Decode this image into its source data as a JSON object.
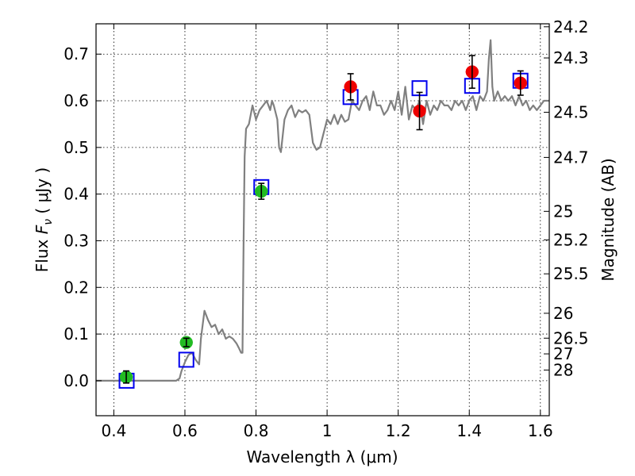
{
  "chart_data": {
    "type": "scatter",
    "xlabel": "Wavelength  λ (μm)",
    "ylabel": "Flux  F_ν  ( μJy )",
    "ylabel_parts": {
      "a": "Flux  ",
      "b": "F",
      "c": "ν",
      "d": "  ( μJy )"
    },
    "ylabel_right": "Magnitude (AB)",
    "xlim": [
      0.35,
      1.625
    ],
    "ylim": [
      -0.075,
      0.765
    ],
    "grid": true,
    "legend": "none",
    "x_ticks": [
      {
        "value": 0.4,
        "label": "0.4"
      },
      {
        "value": 0.6,
        "label": "0.6"
      },
      {
        "value": 0.8,
        "label": "0.8"
      },
      {
        "value": 1.0,
        "label": "1"
      },
      {
        "value": 1.2,
        "label": "1.2"
      },
      {
        "value": 1.4,
        "label": "1.4"
      },
      {
        "value": 1.6,
        "label": "1.6"
      }
    ],
    "y_ticks": [
      {
        "value": 0.0,
        "label": "0.0"
      },
      {
        "value": 0.1,
        "label": "0.1"
      },
      {
        "value": 0.2,
        "label": "0.2"
      },
      {
        "value": 0.3,
        "label": "0.3"
      },
      {
        "value": 0.4,
        "label": "0.4"
      },
      {
        "value": 0.5,
        "label": "0.5"
      },
      {
        "value": 0.6,
        "label": "0.6"
      },
      {
        "value": 0.7,
        "label": "0.7"
      }
    ],
    "right_ticks": [
      {
        "mag": 24.2,
        "label": "24.2"
      },
      {
        "mag": 24.3,
        "label": "24.3"
      },
      {
        "mag": 24.5,
        "label": "24.5"
      },
      {
        "mag": 24.7,
        "label": "24.7"
      },
      {
        "mag": 25.0,
        "label": "25"
      },
      {
        "mag": 25.2,
        "label": "25.2"
      },
      {
        "mag": 25.5,
        "label": "25.5"
      },
      {
        "mag": 26.0,
        "label": "26"
      },
      {
        "mag": 26.5,
        "label": "26.5"
      },
      {
        "mag": 27.0,
        "label": "27"
      },
      {
        "mag": 28.0,
        "label": "28"
      }
    ],
    "colors": {
      "model": "#808080",
      "optical_points": "#22bb22",
      "nir_points": "#ee0000",
      "model_photometry": "#0000ee",
      "errorbar": "#000000"
    },
    "series": [
      {
        "kind": "model_spectrum",
        "x": [
          0.35,
          0.55,
          0.575,
          0.585,
          0.59,
          0.6,
          0.61,
          0.62,
          0.63,
          0.64,
          0.645,
          0.655,
          0.665,
          0.675,
          0.685,
          0.695,
          0.705,
          0.715,
          0.725,
          0.735,
          0.745,
          0.752,
          0.758,
          0.762,
          0.765,
          0.768,
          0.772,
          0.78,
          0.79,
          0.8,
          0.81,
          0.82,
          0.83,
          0.84,
          0.845,
          0.85,
          0.86,
          0.865,
          0.87,
          0.88,
          0.885,
          0.89,
          0.9,
          0.91,
          0.92,
          0.93,
          0.94,
          0.95,
          0.96,
          0.97,
          0.98,
          0.99,
          1.0,
          1.01,
          1.02,
          1.03,
          1.04,
          1.05,
          1.06,
          1.07,
          1.08,
          1.09,
          1.1,
          1.11,
          1.12,
          1.13,
          1.14,
          1.15,
          1.16,
          1.17,
          1.18,
          1.19,
          1.2,
          1.21,
          1.22,
          1.23,
          1.24,
          1.25,
          1.26,
          1.27,
          1.28,
          1.29,
          1.3,
          1.31,
          1.32,
          1.33,
          1.34,
          1.35,
          1.36,
          1.37,
          1.38,
          1.39,
          1.4,
          1.41,
          1.42,
          1.43,
          1.44,
          1.45,
          1.455,
          1.46,
          1.465,
          1.47,
          1.48,
          1.49,
          1.5,
          1.51,
          1.52,
          1.53,
          1.54,
          1.55,
          1.56,
          1.57,
          1.58,
          1.59,
          1.6,
          1.61,
          1.625
        ],
        "y": [
          0.0,
          0.0,
          0.0,
          0.005,
          0.02,
          0.04,
          0.055,
          0.06,
          0.045,
          0.035,
          0.09,
          0.15,
          0.13,
          0.115,
          0.12,
          0.1,
          0.11,
          0.09,
          0.095,
          0.09,
          0.08,
          0.07,
          0.06,
          0.06,
          0.3,
          0.48,
          0.54,
          0.55,
          0.59,
          0.56,
          0.58,
          0.59,
          0.6,
          0.58,
          0.6,
          0.59,
          0.56,
          0.5,
          0.49,
          0.56,
          0.57,
          0.58,
          0.59,
          0.565,
          0.58,
          0.575,
          0.58,
          0.57,
          0.51,
          0.495,
          0.5,
          0.53,
          0.56,
          0.55,
          0.57,
          0.55,
          0.57,
          0.555,
          0.56,
          0.6,
          0.59,
          0.58,
          0.6,
          0.61,
          0.58,
          0.62,
          0.59,
          0.59,
          0.57,
          0.58,
          0.6,
          0.58,
          0.62,
          0.57,
          0.63,
          0.56,
          0.59,
          0.58,
          0.6,
          0.55,
          0.6,
          0.57,
          0.59,
          0.58,
          0.6,
          0.59,
          0.59,
          0.58,
          0.6,
          0.59,
          0.6,
          0.58,
          0.6,
          0.61,
          0.58,
          0.61,
          0.6,
          0.62,
          0.69,
          0.73,
          0.63,
          0.6,
          0.62,
          0.6,
          0.61,
          0.6,
          0.61,
          0.59,
          0.61,
          0.59,
          0.6,
          0.58,
          0.59,
          0.58,
          0.59,
          0.6,
          0.6
        ]
      },
      {
        "kind": "observed_optical",
        "points": [
          {
            "x": 0.435,
            "y": 0.008,
            "err": 0.013
          },
          {
            "x": 0.604,
            "y": 0.082,
            "err": 0.009
          },
          {
            "x": 0.815,
            "y": 0.406,
            "err": 0.017
          }
        ]
      },
      {
        "kind": "observed_nir",
        "points": [
          {
            "x": 1.066,
            "y": 0.63,
            "err": 0.028
          },
          {
            "x": 1.26,
            "y": 0.578,
            "err": 0.04
          },
          {
            "x": 1.408,
            "y": 0.662,
            "err": 0.035
          },
          {
            "x": 1.544,
            "y": 0.638,
            "err": 0.026
          }
        ]
      },
      {
        "kind": "model_photometry",
        "points": [
          {
            "x": 0.436,
            "y": 0.0
          },
          {
            "x": 0.604,
            "y": 0.045
          },
          {
            "x": 0.815,
            "y": 0.415
          },
          {
            "x": 1.066,
            "y": 0.608
          },
          {
            "x": 1.26,
            "y": 0.627
          },
          {
            "x": 1.408,
            "y": 0.632
          },
          {
            "x": 1.544,
            "y": 0.643
          }
        ]
      }
    ]
  }
}
